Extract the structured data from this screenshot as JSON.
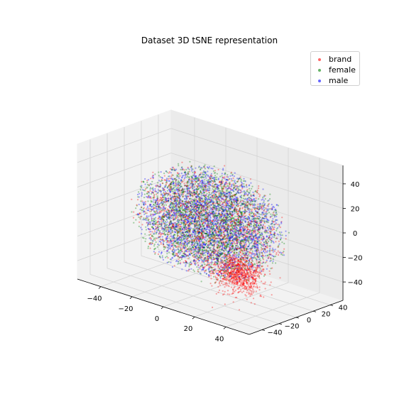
{
  "chart_data": {
    "type": "scatter",
    "projection": "3d",
    "title": "Dataset 3D tSNE representation",
    "xlabel": "",
    "ylabel": "",
    "zlabel": "",
    "xlim": [
      -55,
      55
    ],
    "ylim": [
      -55,
      55
    ],
    "zlim": [
      -55,
      55
    ],
    "x_ticks": [
      -40,
      -20,
      0,
      20,
      40
    ],
    "y_ticks": [
      -40,
      -20,
      0,
      20,
      40
    ],
    "z_ticks": [
      -40,
      -20,
      0,
      20,
      40
    ],
    "grid": true,
    "legend_position": "top-right",
    "series": [
      {
        "name": "brand",
        "color": "#ff0000",
        "points": 2500,
        "distribution": "spherical cloud, radius ~45, with dense cluster near x=35, y=-30, z=-20"
      },
      {
        "name": "female",
        "color": "#008000",
        "points": 2500,
        "distribution": "spherical cloud, radius ~45"
      },
      {
        "name": "male",
        "color": "#0000ff",
        "points": 2500,
        "distribution": "spherical cloud, radius ~45"
      }
    ]
  }
}
